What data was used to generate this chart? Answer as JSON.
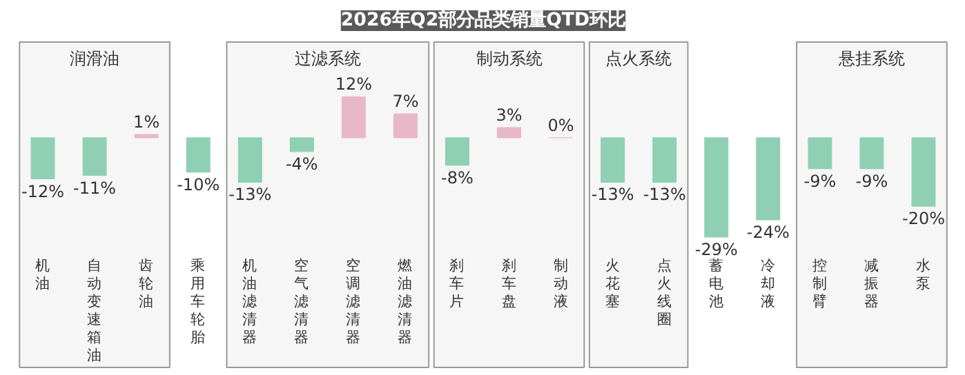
{
  "chart_data": {
    "type": "bar",
    "title": "2026年Q2部分品类销量QTD环比",
    "categories": [
      "机油",
      "自动变速箱油",
      "齿轮油",
      "乘用车轮胎",
      "机油滤清器",
      "空气滤清器",
      "空调滤清器",
      "燃油滤清器",
      "刹车片",
      "刹车盘",
      "制动液",
      "火花塞",
      "点火线圈",
      "蓄电池",
      "冷却液",
      "控制臂",
      "减振器",
      "水泵"
    ],
    "values": [
      -12,
      -11,
      1,
      -10,
      -13,
      -4,
      12,
      7,
      -8,
      3,
      0,
      -13,
      -13,
      -29,
      -24,
      -9,
      -9,
      -20
    ],
    "value_labels": [
      "-12%",
      "-11%",
      "1%",
      "-10%",
      "-13%",
      "-4%",
      "12%",
      "7%",
      "-8%",
      "3%",
      "0%",
      "-13%",
      "-13%",
      "-29%",
      "-24%",
      "-9%",
      "-9%",
      "-20%"
    ],
    "colors": [
      "#8fd0b4",
      "#8fd0b4",
      "#e8b8c8",
      "#8fd0b4",
      "#8fd0b4",
      "#8fd0b4",
      "#e8b8c8",
      "#e8b8c8",
      "#8fd0b4",
      "#e8b8c8",
      "#e8b8c8",
      "#8fd0b4",
      "#8fd0b4",
      "#8fd0b4",
      "#8fd0b4",
      "#8fd0b4",
      "#8fd0b4",
      "#8fd0b4"
    ],
    "bands": [
      {
        "axis": "x",
        "from": "机油",
        "to": "齿轮油",
        "label": "润滑油",
        "color": "#f6f6f6"
      },
      {
        "axis": "x",
        "from": "机油滤清器",
        "to": "燃油滤清器",
        "label": "过滤系统",
        "color": "#f6f6f6"
      },
      {
        "axis": "x",
        "from": "刹车片",
        "to": "制动液",
        "label": "制动系统",
        "color": "#f6f6f6"
      },
      {
        "axis": "x",
        "from": "火花塞",
        "to": "点火线圈",
        "label": "点火系统",
        "color": "#f6f6f6"
      },
      {
        "axis": "x",
        "from": "控制臂",
        "to": "水泵",
        "label": "悬挂系统",
        "color": "#f6f6f6"
      }
    ],
    "grid": false
  }
}
